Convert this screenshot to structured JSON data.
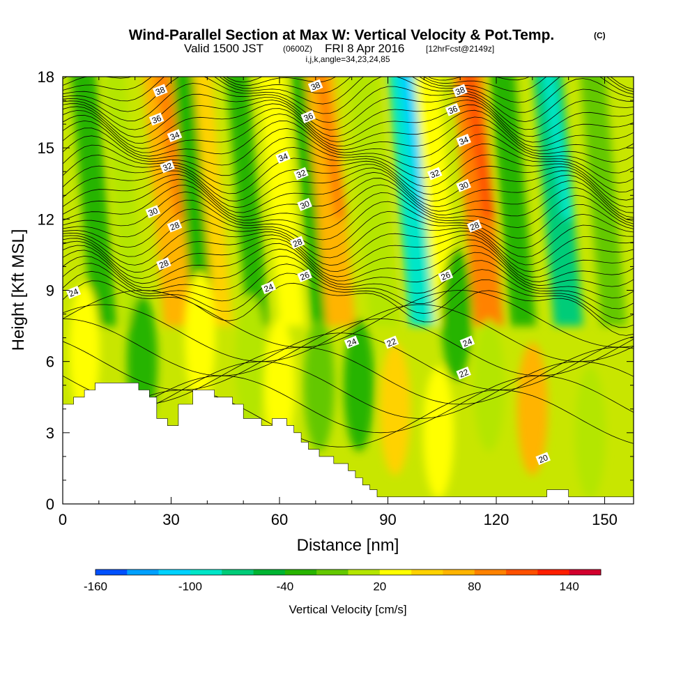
{
  "chart_data": {
    "type": "heatmap",
    "title": "Wind-Parallel Section at Max W: Vertical Velocity & Pot.Temp.",
    "title_suffix": "(C)",
    "subtitle_main": "Valid 1500 JST",
    "subtitle_utc": "(0600Z)",
    "subtitle_date": "FRI 8 Apr 2016",
    "subtitle_run": "[12hrFcst@2149z]",
    "subtitle_indices": "i,j,k,angle=34,23,24,85",
    "xlabel": "Distance [nm]",
    "ylabel": "Height [Kft MSL]",
    "xlim": [
      0,
      158
    ],
    "ylim": [
      0,
      18
    ],
    "x_ticks": [
      "0",
      "30",
      "60",
      "90",
      "120",
      "150"
    ],
    "y_ticks": [
      "0",
      "3",
      "6",
      "9",
      "12",
      "15",
      "18"
    ],
    "colorbar": {
      "label": "Vertical Velocity [cm/s]",
      "range": [
        -160,
        160
      ],
      "step": 20,
      "tick_labels": [
        "-160",
        "-100",
        "-40",
        "20",
        "80",
        "140"
      ],
      "colors": [
        "#0000ff",
        "#0050ff",
        "#00a0ff",
        "#00d2ff",
        "#00e6c8",
        "#00cc78",
        "#00b432",
        "#28b400",
        "#64c800",
        "#b4e600",
        "#ffff00",
        "#ffd200",
        "#ffb400",
        "#ff8200",
        "#ff5000",
        "#ff1e00",
        "#d2002d",
        "#a00050",
        "#640080"
      ]
    },
    "velocity_bands_cm_s": [
      {
        "x": 2,
        "w": 7,
        "value": -40
      },
      {
        "x": 11,
        "w": 6,
        "value": 0
      },
      {
        "x": 22,
        "w": 10,
        "value": 60
      },
      {
        "x": 30,
        "w": 6,
        "value": -30
      },
      {
        "x": 36,
        "w": 5,
        "value": 40
      },
      {
        "x": 45,
        "w": 6,
        "value": -30
      },
      {
        "x": 54,
        "w": 7,
        "value": 20
      },
      {
        "x": 63,
        "w": 7,
        "value": -40
      },
      {
        "x": 67,
        "w": 8,
        "value": 70
      },
      {
        "x": 79,
        "w": 8,
        "value": 10
      },
      {
        "x": 90,
        "w": 9,
        "value": -100
      },
      {
        "x": 97,
        "w": 7,
        "value": 20
      },
      {
        "x": 108,
        "w": 8,
        "value": 90
      },
      {
        "x": 118,
        "w": 7,
        "value": -30
      },
      {
        "x": 130,
        "w": 8,
        "value": -80
      },
      {
        "x": 143,
        "w": 7,
        "value": -20
      }
    ],
    "low_level_features_cm_s": [
      {
        "x": 6,
        "y": 6.5,
        "value": 30
      },
      {
        "x": 22,
        "y": 6,
        "value": -30
      },
      {
        "x": 38,
        "y": 7,
        "value": 20
      },
      {
        "x": 52,
        "y": 6,
        "value": 0
      },
      {
        "x": 60,
        "y": 5,
        "value": 30
      },
      {
        "x": 71,
        "y": 5,
        "value": -20
      },
      {
        "x": 82,
        "y": 5,
        "value": -40
      },
      {
        "x": 92,
        "y": 4,
        "value": 40
      },
      {
        "x": 104,
        "y": 3,
        "value": 20
      },
      {
        "x": 109,
        "y": 8,
        "value": -40
      },
      {
        "x": 118,
        "y": 5,
        "value": 0
      },
      {
        "x": 130,
        "y": 4,
        "value": 70
      },
      {
        "x": 146,
        "y": 3,
        "value": 10
      }
    ],
    "theta_contour_labels": [
      {
        "x": 3,
        "y": 8.9,
        "label": "24"
      },
      {
        "x": 27,
        "y": 17.4,
        "label": "38"
      },
      {
        "x": 26,
        "y": 16.2,
        "label": "36"
      },
      {
        "x": 31,
        "y": 15.5,
        "label": "34"
      },
      {
        "x": 29,
        "y": 14.2,
        "label": "32"
      },
      {
        "x": 25,
        "y": 12.3,
        "label": "30"
      },
      {
        "x": 31,
        "y": 11.7,
        "label": "28"
      },
      {
        "x": 28,
        "y": 10.1,
        "label": "28"
      },
      {
        "x": 70,
        "y": 17.6,
        "label": "38"
      },
      {
        "x": 68,
        "y": 16.3,
        "label": "36"
      },
      {
        "x": 61,
        "y": 14.6,
        "label": "34"
      },
      {
        "x": 66,
        "y": 13.9,
        "label": "32"
      },
      {
        "x": 67,
        "y": 12.6,
        "label": "30"
      },
      {
        "x": 65,
        "y": 11.0,
        "label": "28"
      },
      {
        "x": 67,
        "y": 9.6,
        "label": "26"
      },
      {
        "x": 57,
        "y": 9.1,
        "label": "24"
      },
      {
        "x": 80,
        "y": 6.8,
        "label": "24"
      },
      {
        "x": 91,
        "y": 6.8,
        "label": "22"
      },
      {
        "x": 110,
        "y": 17.4,
        "label": "38"
      },
      {
        "x": 108,
        "y": 16.6,
        "label": "36"
      },
      {
        "x": 111,
        "y": 15.3,
        "label": "34"
      },
      {
        "x": 103,
        "y": 13.9,
        "label": "32"
      },
      {
        "x": 111,
        "y": 13.4,
        "label": "30"
      },
      {
        "x": 114,
        "y": 11.7,
        "label": "28"
      },
      {
        "x": 106,
        "y": 9.6,
        "label": "26"
      },
      {
        "x": 112,
        "y": 6.8,
        "label": "24"
      },
      {
        "x": 111,
        "y": 5.5,
        "label": "22"
      },
      {
        "x": 133,
        "y": 1.9,
        "label": "20"
      }
    ],
    "terrain_height_kft": [
      {
        "x": 0,
        "h": 4.2
      },
      {
        "x": 3,
        "h": 4.5
      },
      {
        "x": 6,
        "h": 4.8
      },
      {
        "x": 9,
        "h": 5.1
      },
      {
        "x": 18,
        "h": 5.1
      },
      {
        "x": 21,
        "h": 4.8
      },
      {
        "x": 24,
        "h": 4.5
      },
      {
        "x": 26,
        "h": 3.6
      },
      {
        "x": 29,
        "h": 3.3
      },
      {
        "x": 32,
        "h": 4.2
      },
      {
        "x": 36,
        "h": 4.8
      },
      {
        "x": 42,
        "h": 4.5
      },
      {
        "x": 47,
        "h": 4.2
      },
      {
        "x": 50,
        "h": 3.6
      },
      {
        "x": 55,
        "h": 3.3
      },
      {
        "x": 58,
        "h": 3.6
      },
      {
        "x": 62,
        "h": 3.3
      },
      {
        "x": 64,
        "h": 3.0
      },
      {
        "x": 66,
        "h": 2.6
      },
      {
        "x": 68,
        "h": 2.3
      },
      {
        "x": 71,
        "h": 2.0
      },
      {
        "x": 75,
        "h": 1.7
      },
      {
        "x": 79,
        "h": 1.4
      },
      {
        "x": 81,
        "h": 1.1
      },
      {
        "x": 83,
        "h": 0.8
      },
      {
        "x": 85,
        "h": 0.6
      },
      {
        "x": 87,
        "h": 0.3
      },
      {
        "x": 89,
        "h": 0.3
      },
      {
        "x": 134,
        "h": 0.6
      },
      {
        "x": 140,
        "h": 0.3
      },
      {
        "x": 158,
        "h": 0.3
      }
    ]
  }
}
